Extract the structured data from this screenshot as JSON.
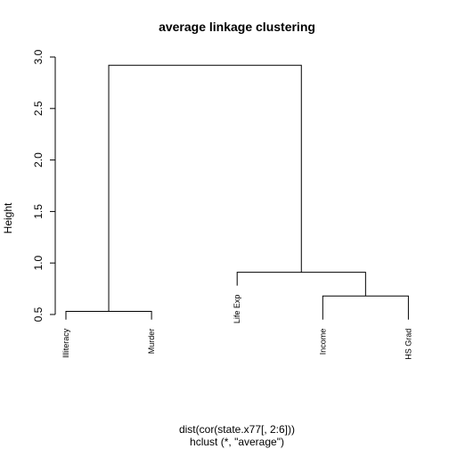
{
  "chart_data": {
    "type": "dendrogram",
    "title": "average linkage clustering",
    "ylabel": "Height",
    "xlabel_line1": "dist(cor(state.x77[, 2:6]))",
    "xlabel_line2": "hclust (*, \"average\")",
    "ylim": [
      0.5,
      3.0
    ],
    "yticks": [
      0.5,
      1.0,
      1.5,
      2.0,
      2.5,
      3.0
    ],
    "ytick_labels": [
      "0.5",
      "1.0",
      "1.5",
      "2.0",
      "2.5",
      "3.0"
    ],
    "leaves": [
      "Illiteracy",
      "Murder",
      "Life Exp",
      "Income",
      "HS Grad"
    ],
    "leaf_tips": [
      0.45,
      0.45,
      0.78,
      0.45,
      0.45
    ],
    "merges": [
      {
        "left": 1,
        "right": 2,
        "height": 0.53
      },
      {
        "left": 4,
        "right": 5,
        "height": 0.68
      },
      {
        "left": 3,
        "right": 7,
        "height": 0.91
      },
      {
        "left": 6,
        "right": 8,
        "height": 2.92
      }
    ],
    "colors": {
      "line": "#000000",
      "text": "#000000",
      "background": "#ffffff"
    }
  }
}
